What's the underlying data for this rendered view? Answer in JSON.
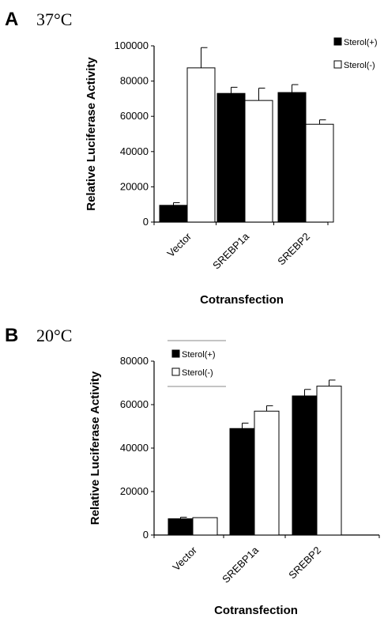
{
  "figure": {
    "panels": [
      {
        "letter": "A",
        "temperature": "37°C",
        "legend_position": "top-right, outside plot"
      },
      {
        "letter": "B",
        "temperature": "20°C",
        "legend_position": "top-left, inside plot"
      }
    ]
  },
  "chart_data": [
    {
      "type": "bar",
      "title": "37°C",
      "xlabel": "Cotransfection",
      "ylabel": "Relative Luciferase Activity",
      "ylim": [
        0,
        100000
      ],
      "yticks": [
        0,
        20000,
        40000,
        60000,
        80000,
        100000
      ],
      "categories": [
        "Vector",
        "SREBP1a",
        "SREBP2"
      ],
      "series": [
        {
          "name": "Sterol(+)",
          "color": "#000000",
          "values": [
            9500,
            73000,
            73500
          ],
          "errors": [
            1500,
            3500,
            4500
          ]
        },
        {
          "name": "Sterol(-)",
          "color": "#ffffff",
          "values": [
            87500,
            69000,
            55500
          ],
          "errors": [
            11500,
            7000,
            2500
          ]
        }
      ],
      "grid": false
    },
    {
      "type": "bar",
      "title": "20°C",
      "xlabel": "Cotransfection",
      "ylabel": "Relative Luciferase Activity",
      "ylim": [
        0,
        80000
      ],
      "yticks": [
        0,
        20000,
        40000,
        60000,
        80000
      ],
      "categories": [
        "Vector",
        "SREBP1a",
        "SREBP2"
      ],
      "series": [
        {
          "name": "Sterol(+)",
          "color": "#000000",
          "values": [
            7500,
            49000,
            64000
          ],
          "errors": [
            700,
            2500,
            3000
          ]
        },
        {
          "name": "Sterol(-)",
          "color": "#ffffff",
          "values": [
            8000,
            57000,
            68500
          ],
          "errors": [
            0,
            2500,
            2800
          ]
        }
      ],
      "grid": false
    }
  ]
}
